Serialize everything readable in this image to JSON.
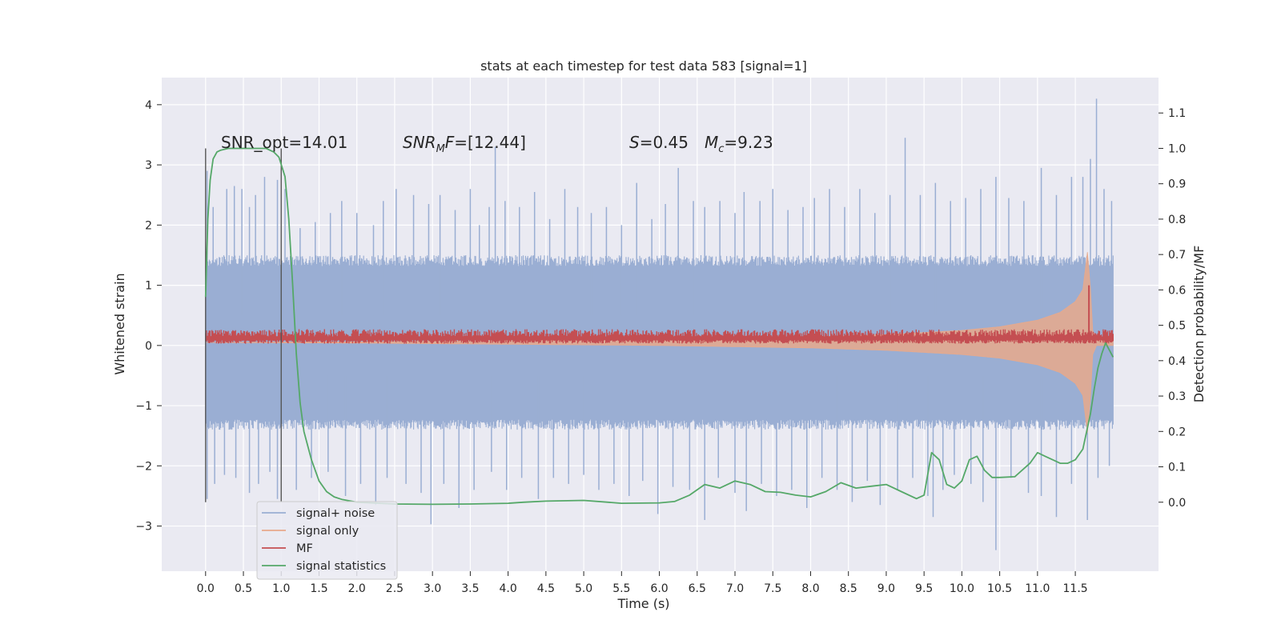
{
  "chart_data": {
    "type": "line",
    "title": "stats at each timestep for test data 583 [signal=1]",
    "xlabel": "Time (s)",
    "ylabel": "Whitened strain",
    "y2label": "Detection probability/MF",
    "xlim": [
      -0.58,
      12.6
    ],
    "ylim": [
      -3.75,
      4.45
    ],
    "y2lim": [
      -0.195,
      1.2
    ],
    "x_ticks": [
      0.0,
      0.5,
      1.0,
      1.5,
      2.0,
      2.5,
      3.0,
      3.5,
      4.0,
      4.5,
      5.0,
      5.5,
      6.0,
      6.5,
      7.0,
      7.5,
      8.0,
      8.5,
      9.0,
      9.5,
      10.0,
      10.5,
      11.0,
      11.5
    ],
    "x_tick_labels": [
      "0.0",
      "0.5",
      "1.0",
      "1.5",
      "2.0",
      "2.5",
      "3.0",
      "3.5",
      "4.0",
      "4.5",
      "5.0",
      "5.5",
      "6.0",
      "6.5",
      "7.0",
      "7.5",
      "8.0",
      "8.5",
      "9.0",
      "9.5",
      "10.0",
      "10.5",
      "11.0",
      "11.5"
    ],
    "y_ticks": [
      -3,
      -2,
      -1,
      0,
      1,
      2,
      3,
      4
    ],
    "y_tick_labels": [
      "−3",
      "−2",
      "−1",
      "0",
      "1",
      "2",
      "3",
      "4"
    ],
    "y2_ticks": [
      0.0,
      0.1,
      0.2,
      0.3,
      0.4,
      0.5,
      0.6,
      0.7,
      0.8,
      0.9,
      1.0,
      1.1
    ],
    "y2_tick_labels": [
      "0.0",
      "0.1",
      "0.2",
      "0.3",
      "0.4",
      "0.5",
      "0.6",
      "0.7",
      "0.8",
      "0.9",
      "1.0",
      "1.1"
    ],
    "grid": true,
    "legend_position": "lower-left",
    "annotations": {
      "snr_opt": "SNR_opt=14.01",
      "snr_mf": "=[12.44]",
      "s_value": "=0.45",
      "mc_value": "=9.23"
    },
    "vertical_markers": [
      0.0,
      1.0
    ],
    "time_range": [
      0.0,
      12.0
    ],
    "series": [
      {
        "name": "signal+ noise",
        "color": "#9aaed3",
        "axis": "left",
        "envelope_upper": [
          [
            0.0,
            1.5
          ],
          [
            12.0,
            1.5
          ]
        ],
        "envelope_lower": [
          [
            0.0,
            -1.4
          ],
          [
            12.0,
            -1.4
          ]
        ],
        "spikes_up": [
          [
            0.02,
            2.9
          ],
          [
            0.1,
            2.3
          ],
          [
            0.28,
            2.6
          ],
          [
            0.38,
            2.65
          ],
          [
            0.48,
            2.6
          ],
          [
            0.58,
            2.3
          ],
          [
            0.66,
            2.5
          ],
          [
            0.78,
            2.8
          ],
          [
            0.95,
            2.75
          ],
          [
            1.05,
            2.6
          ],
          [
            1.25,
            1.95
          ],
          [
            1.45,
            2.05
          ],
          [
            1.65,
            2.2
          ],
          [
            1.8,
            2.4
          ],
          [
            2.0,
            2.2
          ],
          [
            2.22,
            2.0
          ],
          [
            2.35,
            2.4
          ],
          [
            2.52,
            2.6
          ],
          [
            2.75,
            2.5
          ],
          [
            2.95,
            2.35
          ],
          [
            3.1,
            2.5
          ],
          [
            3.3,
            2.25
          ],
          [
            3.5,
            2.6
          ],
          [
            3.62,
            2.0
          ],
          [
            3.75,
            2.3
          ],
          [
            3.83,
            3.3
          ],
          [
            3.96,
            2.4
          ],
          [
            4.15,
            2.3
          ],
          [
            4.35,
            2.55
          ],
          [
            4.55,
            2.1
          ],
          [
            4.75,
            2.6
          ],
          [
            4.92,
            2.3
          ],
          [
            5.1,
            2.2
          ],
          [
            5.3,
            2.3
          ],
          [
            5.5,
            2.0
          ],
          [
            5.7,
            2.7
          ],
          [
            5.9,
            2.1
          ],
          [
            6.08,
            2.35
          ],
          [
            6.25,
            2.95
          ],
          [
            6.45,
            2.4
          ],
          [
            6.6,
            2.3
          ],
          [
            6.8,
            2.4
          ],
          [
            7.0,
            2.2
          ],
          [
            7.12,
            2.55
          ],
          [
            7.33,
            2.4
          ],
          [
            7.5,
            2.6
          ],
          [
            7.7,
            2.25
          ],
          [
            7.9,
            2.3
          ],
          [
            8.05,
            2.45
          ],
          [
            8.25,
            2.6
          ],
          [
            8.45,
            2.3
          ],
          [
            8.65,
            2.6
          ],
          [
            8.85,
            2.2
          ],
          [
            9.05,
            2.5
          ],
          [
            9.25,
            3.45
          ],
          [
            9.45,
            2.5
          ],
          [
            9.65,
            2.7
          ],
          [
            9.85,
            2.4
          ],
          [
            10.05,
            2.45
          ],
          [
            10.25,
            2.6
          ],
          [
            10.45,
            2.8
          ],
          [
            10.62,
            2.45
          ],
          [
            10.82,
            2.4
          ],
          [
            11.05,
            2.95
          ],
          [
            11.25,
            2.5
          ],
          [
            11.45,
            2.8
          ],
          [
            11.6,
            2.8
          ],
          [
            11.7,
            3.1
          ],
          [
            11.78,
            4.1
          ],
          [
            11.88,
            2.6
          ],
          [
            11.98,
            2.4
          ]
        ],
        "spikes_down": [
          [
            0.02,
            -2.55
          ],
          [
            0.12,
            -2.3
          ],
          [
            0.25,
            -2.15
          ],
          [
            0.4,
            -2.2
          ],
          [
            0.58,
            -2.45
          ],
          [
            0.7,
            -2.3
          ],
          [
            0.85,
            -2.1
          ],
          [
            0.95,
            -2.55
          ],
          [
            1.2,
            -2.4
          ],
          [
            1.4,
            -2.2
          ],
          [
            1.62,
            -2.1
          ],
          [
            1.85,
            -2.5
          ],
          [
            2.05,
            -2.3
          ],
          [
            2.25,
            -2.65
          ],
          [
            2.4,
            -2.2
          ],
          [
            2.65,
            -2.3
          ],
          [
            2.85,
            -2.45
          ],
          [
            2.98,
            -2.97
          ],
          [
            3.15,
            -2.3
          ],
          [
            3.35,
            -2.7
          ],
          [
            3.55,
            -2.4
          ],
          [
            3.78,
            -2.1
          ],
          [
            3.98,
            -2.4
          ],
          [
            4.18,
            -2.2
          ],
          [
            4.4,
            -2.55
          ],
          [
            4.6,
            -2.2
          ],
          [
            4.8,
            -2.3
          ],
          [
            5.0,
            -2.15
          ],
          [
            5.2,
            -2.4
          ],
          [
            5.4,
            -2.3
          ],
          [
            5.6,
            -2.5
          ],
          [
            5.78,
            -2.25
          ],
          [
            5.98,
            -2.8
          ],
          [
            6.18,
            -2.35
          ],
          [
            6.4,
            -2.4
          ],
          [
            6.6,
            -2.9
          ],
          [
            6.78,
            -2.2
          ],
          [
            7.0,
            -2.45
          ],
          [
            7.15,
            -2.75
          ],
          [
            7.35,
            -2.3
          ],
          [
            7.55,
            -2.5
          ],
          [
            7.75,
            -2.4
          ],
          [
            7.95,
            -2.7
          ],
          [
            8.15,
            -2.2
          ],
          [
            8.35,
            -2.4
          ],
          [
            8.55,
            -2.6
          ],
          [
            8.75,
            -2.25
          ],
          [
            8.92,
            -2.65
          ],
          [
            9.15,
            -2.4
          ],
          [
            9.35,
            -2.2
          ],
          [
            9.55,
            -2.5
          ],
          [
            9.62,
            -2.85
          ],
          [
            9.75,
            -2.4
          ],
          [
            9.9,
            -2.15
          ],
          [
            10.12,
            -2.3
          ],
          [
            10.28,
            -2.6
          ],
          [
            10.45,
            -3.4
          ],
          [
            10.65,
            -2.2
          ],
          [
            10.88,
            -2.45
          ],
          [
            11.05,
            -2.5
          ],
          [
            11.25,
            -2.85
          ],
          [
            11.45,
            -2.3
          ],
          [
            11.66,
            -2.9
          ],
          [
            11.8,
            -2.2
          ],
          [
            11.95,
            -2.0
          ]
        ]
      },
      {
        "name": "signal only",
        "color": "#e8a98b",
        "axis": "left",
        "envelope": [
          [
            0.0,
            0.0
          ],
          [
            2.0,
            0.01
          ],
          [
            4.0,
            0.03
          ],
          [
            6.0,
            0.05
          ],
          [
            8.0,
            0.09
          ],
          [
            9.0,
            0.13
          ],
          [
            10.0,
            0.2
          ],
          [
            10.5,
            0.26
          ],
          [
            11.0,
            0.37
          ],
          [
            11.3,
            0.5
          ],
          [
            11.5,
            0.68
          ],
          [
            11.6,
            0.88
          ],
          [
            11.66,
            1.5
          ],
          [
            11.7,
            0.9
          ],
          [
            11.73,
            0.2
          ],
          [
            11.78,
            0.05
          ],
          [
            12.0,
            0.05
          ]
        ]
      },
      {
        "name": "MF",
        "color": "#c44e52",
        "axis": "left",
        "band": [
          0.03,
          0.27
        ],
        "spikes": [
          [
            11.68,
            1.0
          ]
        ]
      },
      {
        "name": "signal statistics",
        "color": "#55a868",
        "axis": "right",
        "x": [
          0.0,
          0.03,
          0.06,
          0.1,
          0.15,
          0.2,
          0.3,
          0.5,
          0.7,
          0.8,
          0.9,
          0.97,
          1.05,
          1.1,
          1.15,
          1.2,
          1.25,
          1.3,
          1.4,
          1.5,
          1.6,
          1.7,
          1.8,
          2.0,
          2.5,
          3.0,
          3.5,
          4.0,
          4.2,
          4.5,
          5.0,
          5.5,
          6.0,
          6.2,
          6.4,
          6.6,
          6.8,
          7.0,
          7.2,
          7.4,
          7.6,
          7.8,
          8.0,
          8.2,
          8.4,
          8.6,
          8.8,
          9.0,
          9.2,
          9.4,
          9.5,
          9.6,
          9.7,
          9.8,
          9.9,
          10.0,
          10.1,
          10.2,
          10.3,
          10.4,
          10.5,
          10.7,
          10.9,
          11.0,
          11.1,
          11.2,
          11.3,
          11.4,
          11.5,
          11.6,
          11.7,
          11.75,
          11.8,
          11.85,
          11.9,
          11.95,
          12.0
        ],
        "values": [
          0.58,
          0.8,
          0.91,
          0.97,
          0.99,
          0.995,
          1.0,
          1.0,
          1.0,
          1.0,
          0.99,
          0.975,
          0.92,
          0.8,
          0.62,
          0.42,
          0.28,
          0.2,
          0.12,
          0.06,
          0.03,
          0.015,
          0.008,
          0.0,
          -0.005,
          -0.006,
          -0.005,
          -0.003,
          0.0,
          0.003,
          0.005,
          -0.003,
          -0.002,
          0.002,
          0.02,
          0.05,
          0.04,
          0.06,
          0.05,
          0.03,
          0.028,
          0.02,
          0.015,
          0.03,
          0.055,
          0.04,
          0.045,
          0.05,
          0.03,
          0.01,
          0.02,
          0.14,
          0.12,
          0.05,
          0.04,
          0.06,
          0.12,
          0.13,
          0.09,
          0.07,
          0.07,
          0.072,
          0.11,
          0.14,
          0.13,
          0.12,
          0.11,
          0.11,
          0.12,
          0.15,
          0.25,
          0.32,
          0.38,
          0.42,
          0.45,
          0.43,
          0.41
        ]
      }
    ]
  }
}
